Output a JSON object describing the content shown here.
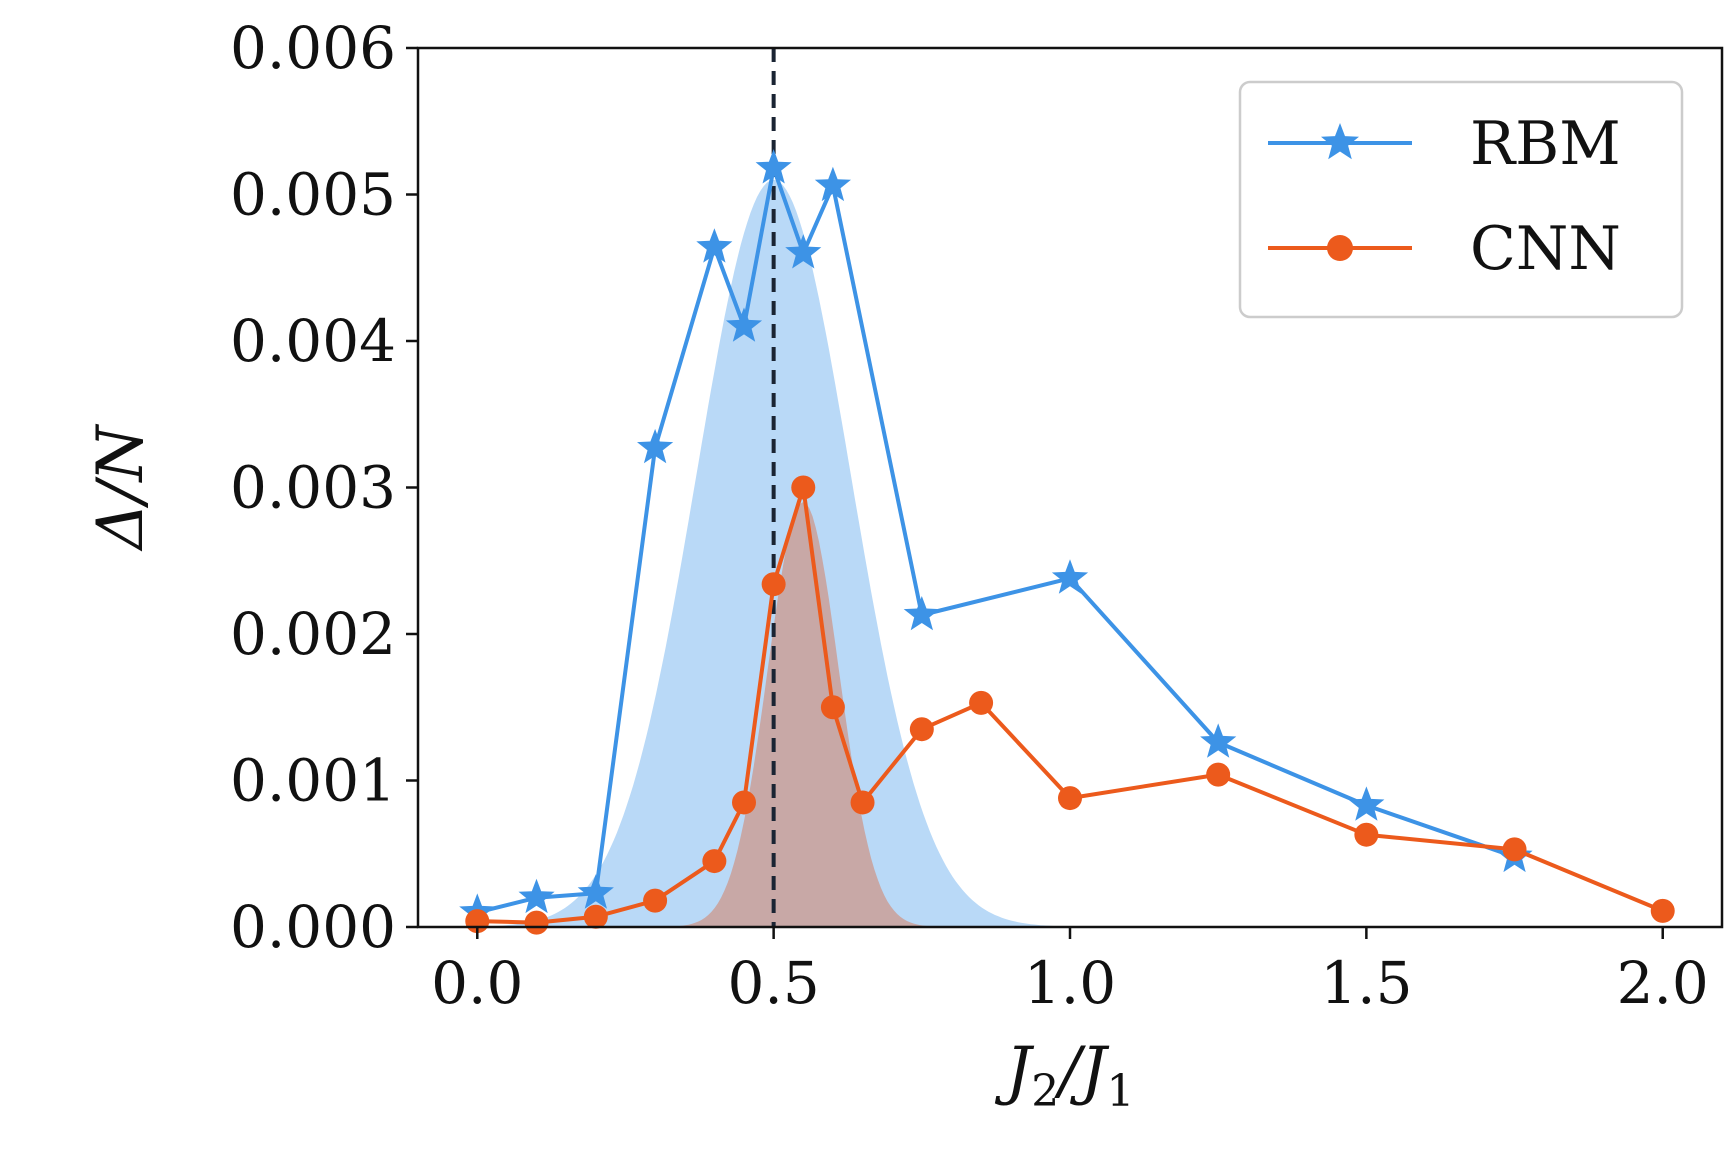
{
  "chart_data": {
    "type": "line",
    "title": "",
    "xlabel": "J2/J1",
    "ylabel": "Δ/N",
    "xlabel_parts": {
      "base1": "J",
      "sub1": "2",
      "slash": "/",
      "base2": "J",
      "sub2": "1"
    },
    "xlim": [
      -0.1,
      2.1
    ],
    "ylim": [
      0,
      0.006
    ],
    "xticks": [
      0.0,
      0.5,
      1.0,
      1.5,
      2.0
    ],
    "xtick_labels": [
      "0.0",
      "0.5",
      "1.0",
      "1.5",
      "2.0"
    ],
    "yticks": [
      0,
      0.001,
      0.002,
      0.003,
      0.004,
      0.005,
      0.006
    ],
    "ytick_labels": [
      "0.000",
      "0.001",
      "0.002",
      "0.003",
      "0.004",
      "0.005",
      "0.006"
    ],
    "grid": false,
    "legend_position": "top-right",
    "vline": {
      "x": 0.5,
      "style": "dashed",
      "color": "#1a2433"
    },
    "series": [
      {
        "name": "RBM",
        "marker": "star",
        "color": "#3d93e6",
        "x": [
          0.0,
          0.1,
          0.2,
          0.3,
          0.4,
          0.45,
          0.5,
          0.55,
          0.6,
          0.75,
          1.0,
          1.25,
          1.5,
          1.75
        ],
        "y": [
          0.0001,
          0.0002,
          0.00023,
          0.00327,
          0.00464,
          0.0041,
          0.00518,
          0.0046,
          0.00506,
          0.00213,
          0.00238,
          0.00126,
          0.00083,
          0.00048
        ]
      },
      {
        "name": "CNN",
        "marker": "circle",
        "color": "#ec5a1c",
        "x": [
          0.0,
          0.1,
          0.2,
          0.3,
          0.4,
          0.45,
          0.5,
          0.55,
          0.6,
          0.65,
          0.75,
          0.85,
          1.0,
          1.25,
          1.5,
          1.75,
          2.0
        ],
        "y": [
          4e-05,
          3e-05,
          7e-05,
          0.00018,
          0.00045,
          0.00085,
          0.00234,
          0.003,
          0.0015,
          0.00085,
          0.00135,
          0.00153,
          0.00088,
          0.00104,
          0.00063,
          0.00053,
          0.00011
        ]
      }
    ],
    "shaded_regions": [
      {
        "name": "RBM-uncertainty",
        "type": "gaussian",
        "center": 0.5,
        "sigma": 0.13,
        "peak": 0.0051,
        "color": "#b9d9f7"
      },
      {
        "name": "CNN-uncertainty",
        "type": "gaussian",
        "center": 0.55,
        "sigma": 0.06,
        "peak": 0.0029,
        "color": "#c8a8a6"
      }
    ]
  }
}
